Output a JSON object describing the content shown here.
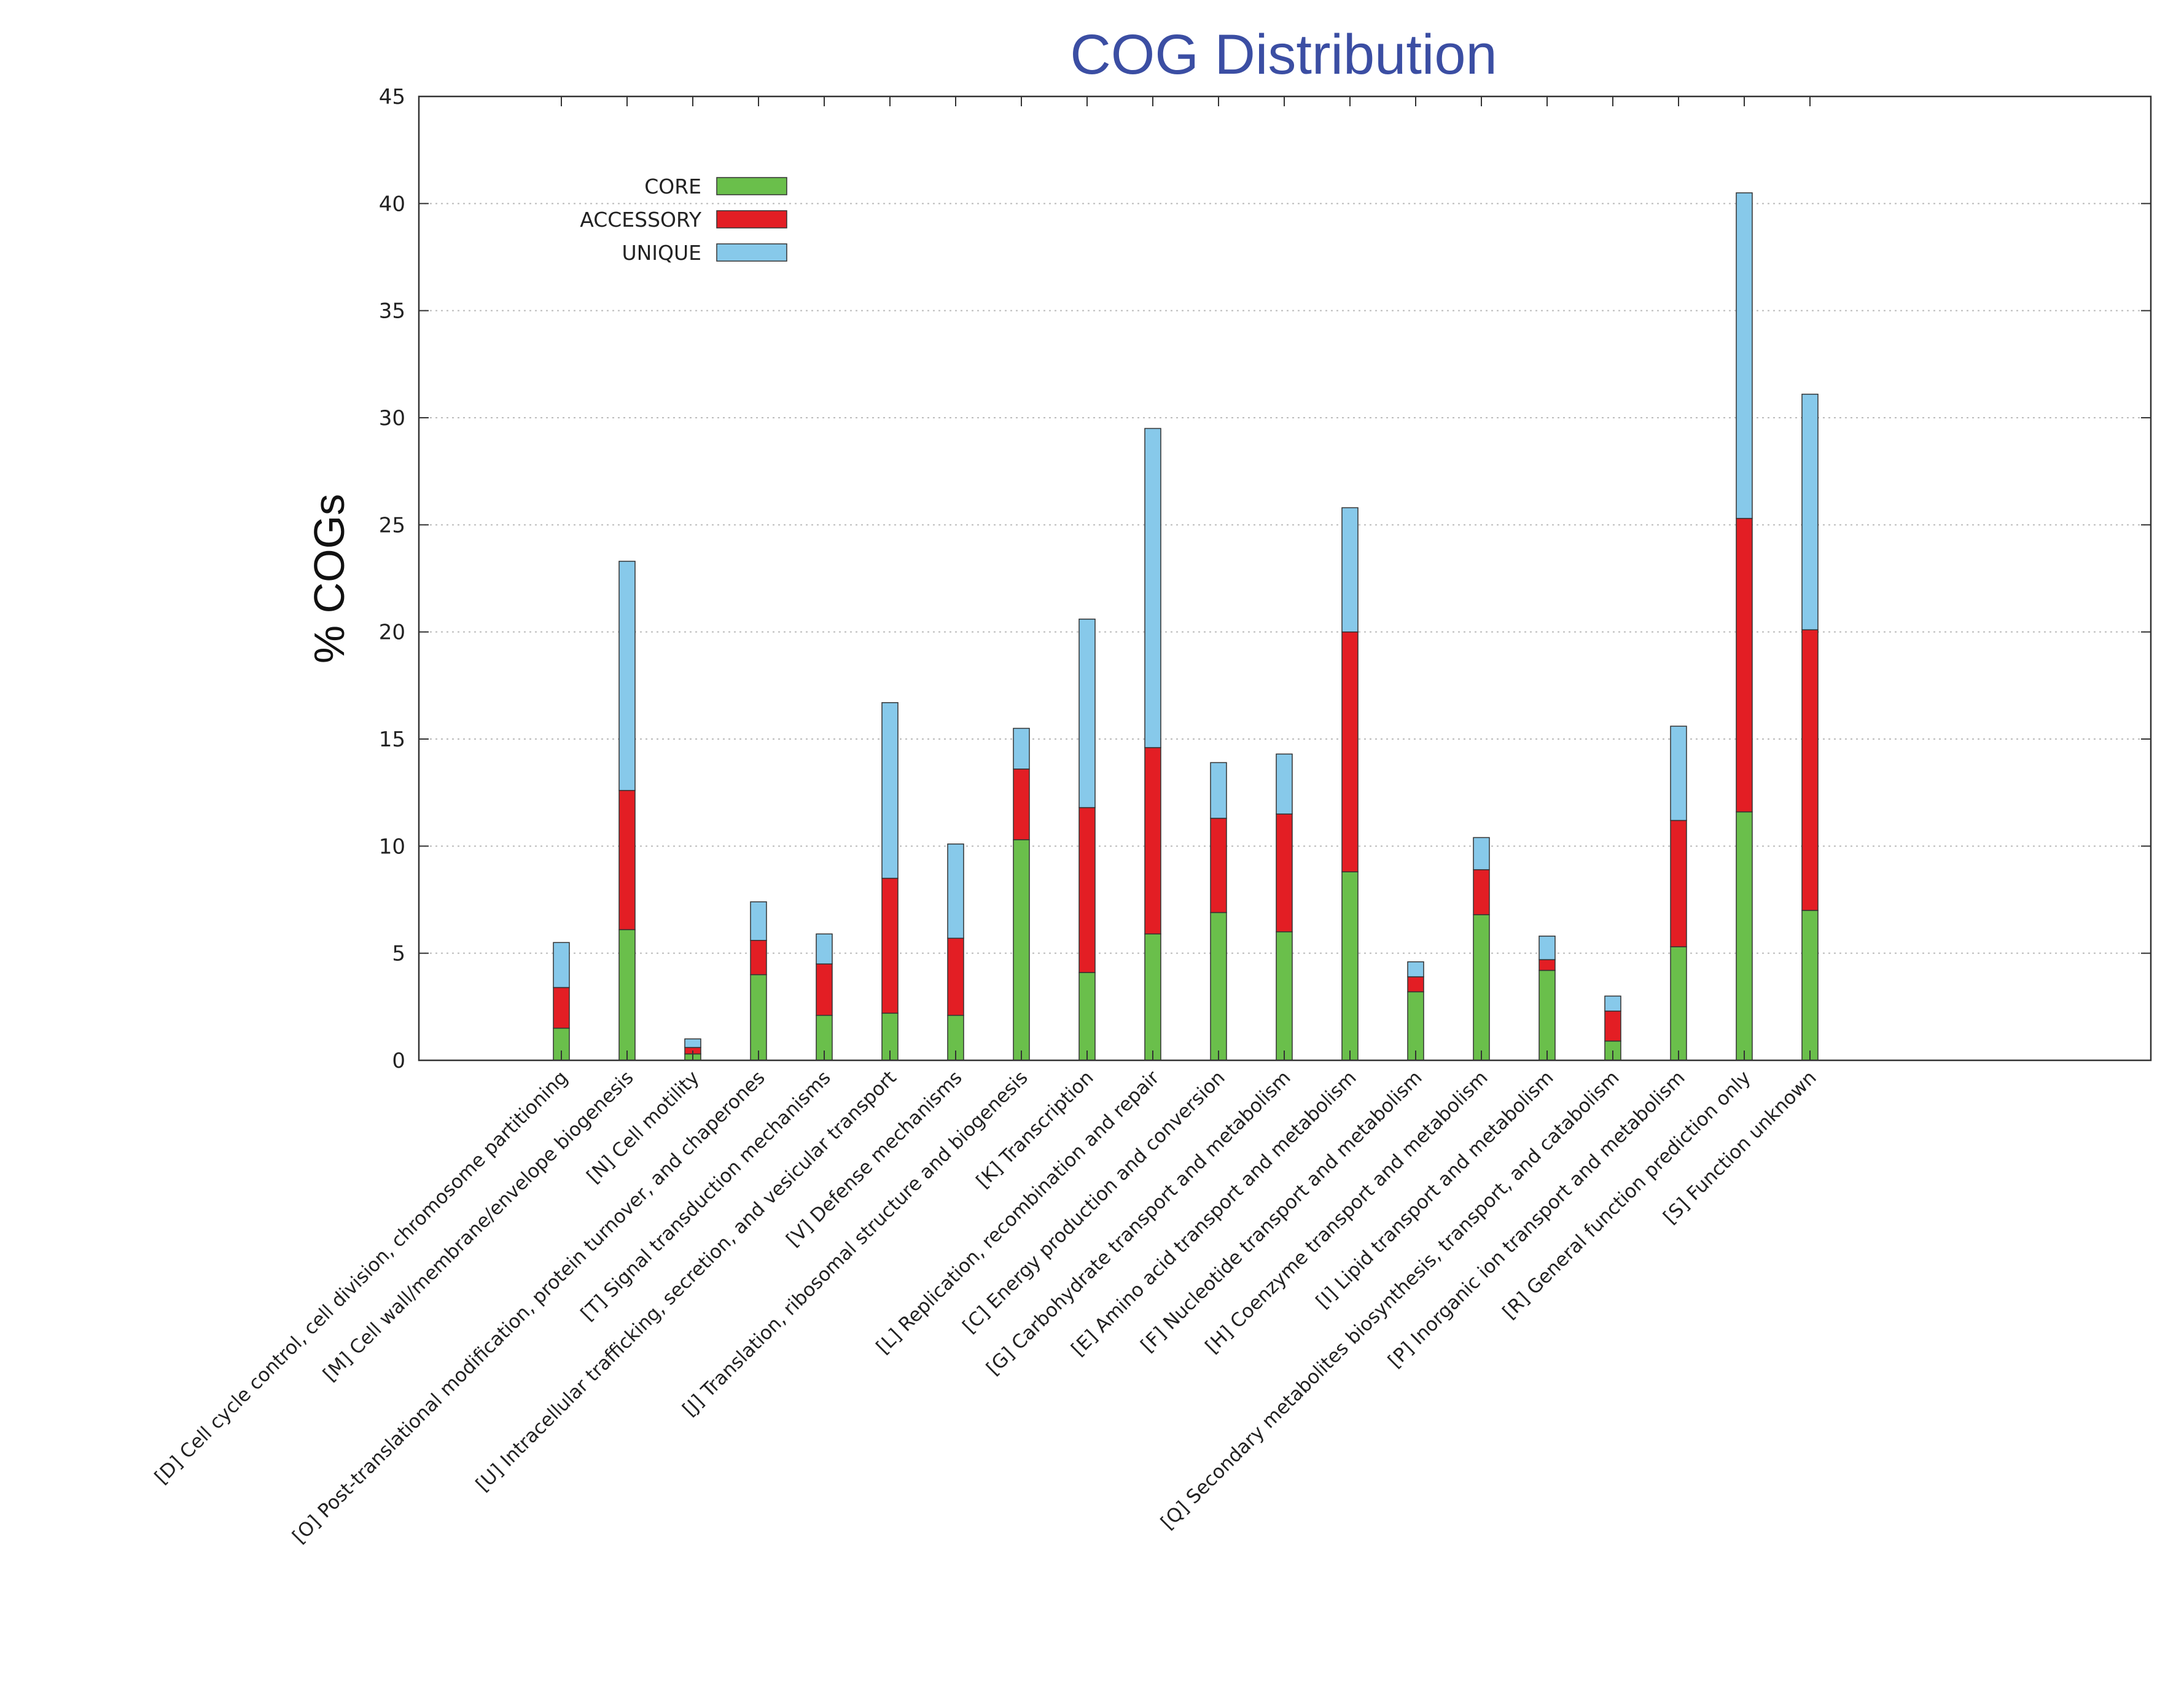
{
  "chart_data": {
    "type": "bar",
    "stacked": true,
    "title": "COG Distribution",
    "xlabel": "",
    "ylabel": "% COGs",
    "ylim": [
      0,
      45
    ],
    "yticks": [
      0,
      5,
      10,
      15,
      20,
      25,
      30,
      35,
      40,
      45
    ],
    "grid": true,
    "legend_position": "top-left",
    "categories": [
      "[D] Cell cycle control, cell division, chromosome partitioning",
      "[M] Cell wall/membrane/envelope biogenesis",
      "[N] Cell motility",
      "[O] Post-translational modification, protein turnover, and chaperones",
      "[T] Signal transduction mechanisms",
      "[U] Intracellular trafficking, secretion, and vesicular transport",
      "[V] Defense mechanisms",
      "[J] Translation, ribosomal structure and biogenesis",
      "[K] Transcription",
      "[L] Replication, recombination and repair",
      "[C] Energy production and conversion",
      "[G] Carbohydrate transport and metabolism",
      "[E] Amino acid transport and metabolism",
      "[F] Nucleotide transport and metabolism",
      "[H] Coenzyme transport and metabolism",
      "[I] Lipid transport and metabolism",
      "[Q] Secondary metabolites biosynthesis, transport, and catabolism",
      "[P] Inorganic ion transport and metabolism",
      "[R] General function prediction only",
      "[S] Function unknown"
    ],
    "series": [
      {
        "name": "CORE",
        "color": "#6abf4b",
        "values": [
          1.5,
          6.1,
          0.3,
          4.0,
          2.1,
          2.2,
          2.1,
          10.3,
          4.1,
          5.9,
          6.9,
          6.0,
          8.8,
          3.2,
          6.8,
          4.2,
          0.9,
          5.3,
          11.6,
          7.0
        ]
      },
      {
        "name": "ACCESSORY",
        "color": "#e31e24",
        "values": [
          1.9,
          6.5,
          0.3,
          1.6,
          2.4,
          6.3,
          3.6,
          3.3,
          7.7,
          8.7,
          4.4,
          5.5,
          11.2,
          0.7,
          2.1,
          0.5,
          1.4,
          5.9,
          13.7,
          13.1
        ]
      },
      {
        "name": "UNIQUE",
        "color": "#87c9ea",
        "values": [
          2.1,
          10.7,
          0.4,
          1.8,
          1.4,
          8.2,
          4.4,
          1.9,
          8.8,
          14.9,
          2.6,
          2.8,
          5.8,
          0.7,
          1.5,
          1.1,
          0.7,
          4.4,
          15.2,
          11.0
        ]
      }
    ],
    "title_color": "#3b4ea3"
  }
}
